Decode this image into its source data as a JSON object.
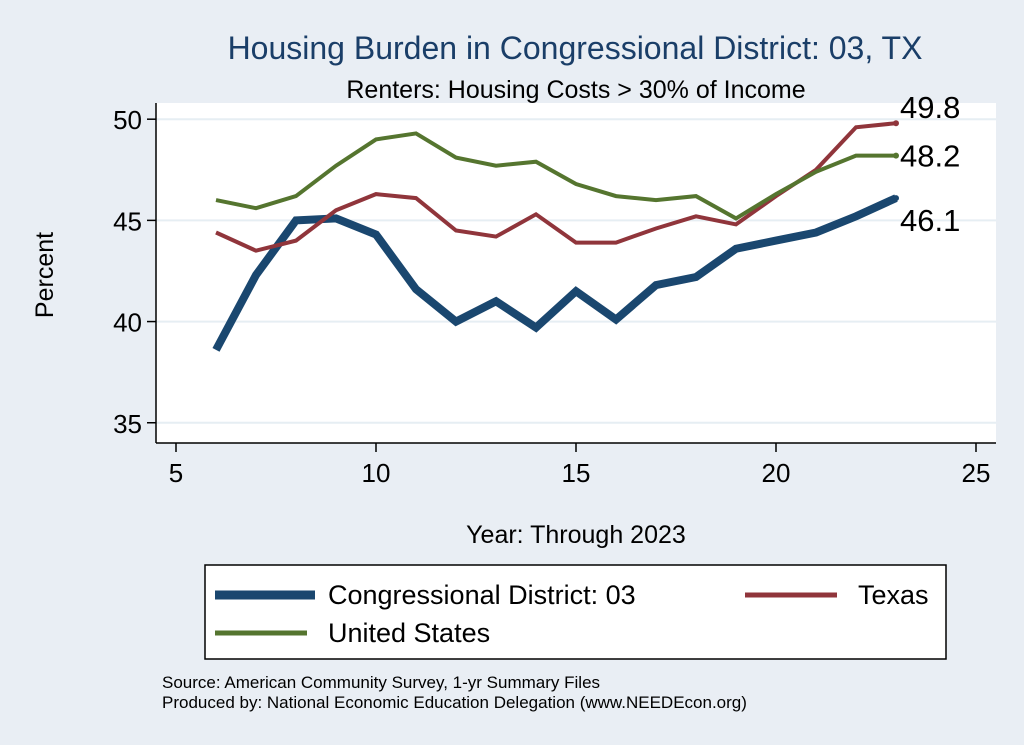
{
  "chart_data": {
    "type": "line",
    "title": "Housing Burden in Congressional District:  03, TX",
    "subtitle": "Renters: Housing Costs > 30% of Income",
    "xlabel": "Year: Through 2023",
    "ylabel": "Percent",
    "xlim": [
      4.5,
      25.5
    ],
    "ylim": [
      34,
      50.8
    ],
    "xticks": [
      5,
      10,
      15,
      20,
      25
    ],
    "yticks": [
      35,
      40,
      45,
      50
    ],
    "grid": true,
    "legend_position": "bottom",
    "x": [
      6,
      7,
      8,
      9,
      10,
      11,
      12,
      13,
      14,
      15,
      16,
      17,
      18,
      19,
      20,
      21,
      22,
      23
    ],
    "series": [
      {
        "name": "Congressional District:  03",
        "color": "#1a476f",
        "values": [
          38.6,
          42.3,
          45.0,
          45.1,
          44.3,
          41.6,
          40.0,
          41.0,
          39.7,
          41.5,
          40.1,
          41.8,
          42.2,
          43.6,
          44.0,
          44.4,
          45.2,
          46.1
        ],
        "end_label": "46.1"
      },
      {
        "name": "Texas",
        "color": "#90353b",
        "values": [
          44.4,
          43.5,
          44.0,
          45.5,
          46.3,
          46.1,
          44.5,
          44.2,
          45.3,
          43.9,
          43.9,
          44.6,
          45.2,
          44.8,
          46.2,
          47.5,
          49.6,
          49.8
        ],
        "end_label": "49.8"
      },
      {
        "name": "United States",
        "color": "#55752f",
        "values": [
          46.0,
          45.6,
          46.2,
          47.7,
          49.0,
          49.3,
          48.1,
          47.7,
          47.9,
          46.8,
          46.2,
          46.0,
          46.2,
          45.1,
          46.3,
          47.4,
          48.2,
          48.2
        ],
        "end_label": "48.2"
      }
    ]
  },
  "source_note": "Source: American Community Survey, 1-yr Summary Files",
  "producer_note": "Produced by: National Economic Education Delegation (www.NEEDEcon.org)"
}
